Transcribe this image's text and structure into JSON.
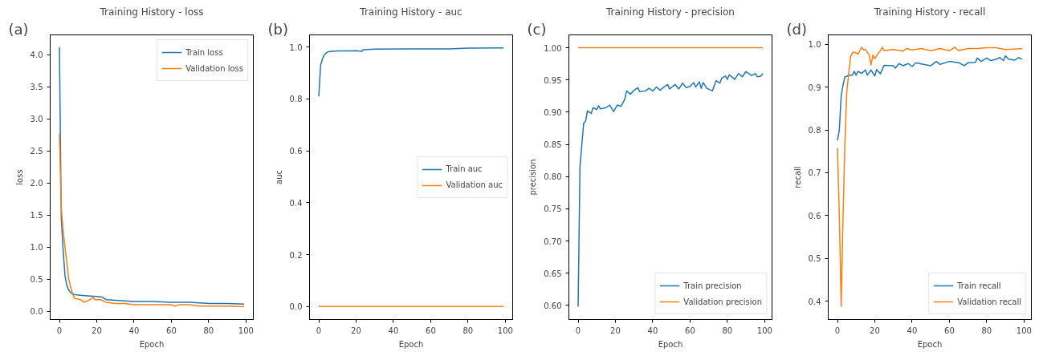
{
  "chart_data": [
    {
      "type": "line",
      "title": "Training History - loss",
      "xlabel": "Epoch",
      "ylabel": "loss",
      "annotations": [
        "(a)"
      ],
      "legend": "top right",
      "grid": false,
      "xlim": [
        -4.95,
        103.95
      ],
      "xticks": [
        0,
        20,
        40,
        60,
        80,
        100
      ],
      "ylim": [
        -0.13,
        4.31
      ],
      "yticks": [
        {
          "value": 0,
          "label": "0.0"
        },
        0.5,
        {
          "value": 1,
          "label": "1.0"
        },
        1.5,
        {
          "value": 2,
          "label": "2.0"
        },
        2.5,
        {
          "value": 3,
          "label": "3.0"
        },
        3.5,
        {
          "value": 4,
          "label": "4.0"
        }
      ],
      "series": [
        {
          "name": "Train loss",
          "color": "#1f77b4",
          "x": [
            0,
            1,
            2,
            3,
            4,
            5,
            6,
            7,
            8,
            10,
            15,
            20,
            23,
            25,
            30,
            40,
            50,
            60,
            70,
            75,
            80,
            90,
            99
          ],
          "values": [
            4.12,
            1.45,
            0.95,
            0.55,
            0.4,
            0.33,
            0.29,
            0.27,
            0.26,
            0.25,
            0.24,
            0.23,
            0.22,
            0.18,
            0.17,
            0.15,
            0.15,
            0.14,
            0.14,
            0.13,
            0.12,
            0.12,
            0.11
          ]
        },
        {
          "name": "Validation loss",
          "color": "#ff7f0e",
          "x": [
            0,
            1,
            2,
            3,
            4,
            5,
            6,
            7,
            8,
            10,
            12,
            13,
            15,
            17,
            18,
            19,
            22,
            25,
            30,
            35,
            40,
            50,
            60,
            62,
            64,
            70,
            75,
            80,
            90,
            99
          ],
          "values": [
            2.77,
            1.6,
            1.25,
            1.0,
            0.75,
            0.5,
            0.38,
            0.28,
            0.2,
            0.19,
            0.17,
            0.14,
            0.16,
            0.19,
            0.22,
            0.18,
            0.18,
            0.14,
            0.12,
            0.12,
            0.1,
            0.1,
            0.1,
            0.08,
            0.1,
            0.1,
            0.08,
            0.08,
            0.08,
            0.07
          ]
        }
      ]
    },
    {
      "type": "line",
      "title": "Training History - auc",
      "xlabel": "Epoch",
      "ylabel": "auc",
      "annotations": [
        "(b)"
      ],
      "legend": "right",
      "grid": false,
      "xlim": [
        -4.95,
        103.95
      ],
      "xticks": [
        0,
        20,
        40,
        60,
        80,
        100
      ],
      "ylim": [
        -0.05,
        1.047
      ],
      "yticks": [
        {
          "value": 0,
          "label": "0.0"
        },
        0.2,
        0.4,
        0.6,
        0.8,
        {
          "value": 1,
          "label": "1.0"
        }
      ],
      "series": [
        {
          "name": "Train auc",
          "color": "#1f77b4",
          "x": [
            0,
            1,
            2,
            3,
            4,
            5,
            10,
            15,
            20,
            23,
            24,
            30,
            50,
            70,
            80,
            99
          ],
          "values": [
            0.81,
            0.93,
            0.955,
            0.97,
            0.978,
            0.982,
            0.985,
            0.985,
            0.986,
            0.984,
            0.99,
            0.992,
            0.993,
            0.993,
            0.996,
            0.997
          ]
        },
        {
          "name": "Validation auc",
          "color": "#ff7f0e",
          "x": [
            0,
            99
          ],
          "values": [
            0,
            0
          ]
        }
      ]
    },
    {
      "type": "line",
      "title": "Training History - precision",
      "xlabel": "Epoch",
      "ylabel": "precision",
      "annotations": [
        "(c)"
      ],
      "legend": "bottom right",
      "grid": false,
      "xlim": [
        -4.95,
        103.95
      ],
      "xticks": [
        0,
        20,
        40,
        60,
        80,
        100
      ],
      "ylim": [
        0.578,
        1.02
      ],
      "yticks": [
        {
          "value": 0.6,
          "label": "0.60"
        },
        0.65,
        {
          "value": 0.7,
          "label": "0.70"
        },
        0.75,
        {
          "value": 0.8,
          "label": "0.80"
        },
        0.85,
        {
          "value": 0.9,
          "label": "0.90"
        },
        0.95,
        {
          "value": 1,
          "label": "1.00"
        }
      ],
      "series": [
        {
          "name": "Train precision",
          "color": "#1f77b4",
          "x": [
            0,
            1,
            2,
            3,
            4,
            5,
            7,
            8,
            10,
            11,
            12,
            15,
            17,
            19,
            21,
            23,
            25,
            26,
            28,
            30,
            32,
            33,
            36,
            38,
            40,
            42,
            44,
            46,
            48,
            49,
            52,
            54,
            56,
            58,
            60,
            62,
            63,
            65,
            66,
            67,
            69,
            72,
            74,
            76,
            77,
            79,
            80,
            81,
            84,
            86,
            88,
            90,
            93,
            95,
            96,
            98,
            99
          ],
          "values": [
            0.598,
            0.815,
            0.85,
            0.883,
            0.886,
            0.902,
            0.898,
            0.907,
            0.904,
            0.91,
            0.905,
            0.907,
            0.911,
            0.901,
            0.911,
            0.909,
            0.92,
            0.933,
            0.928,
            0.934,
            0.938,
            0.932,
            0.933,
            0.937,
            0.933,
            0.939,
            0.934,
            0.939,
            0.943,
            0.936,
            0.943,
            0.936,
            0.945,
            0.938,
            0.94,
            0.946,
            0.939,
            0.947,
            0.937,
            0.946,
            0.937,
            0.933,
            0.949,
            0.945,
            0.953,
            0.956,
            0.951,
            0.958,
            0.951,
            0.96,
            0.955,
            0.963,
            0.957,
            0.96,
            0.955,
            0.956,
            0.96
          ]
        },
        {
          "name": "Validation precision",
          "color": "#ff7f0e",
          "x": [
            0,
            99
          ],
          "values": [
            1.0,
            1.0
          ]
        }
      ]
    },
    {
      "type": "line",
      "title": "Training History - recall",
      "xlabel": "Epoch",
      "ylabel": "recall",
      "annotations": [
        "(d)"
      ],
      "legend": "bottom right",
      "grid": false,
      "xlim": [
        -4.95,
        103.95
      ],
      "xticks": [
        0,
        20,
        40,
        60,
        80,
        100
      ],
      "ylim": [
        0.357,
        1.022
      ],
      "yticks": [
        0.4,
        0.5,
        0.6,
        0.7,
        0.8,
        0.9,
        {
          "value": 1,
          "label": "1.0"
        }
      ],
      "series": [
        {
          "name": "Train recall",
          "color": "#1f77b4",
          "x": [
            0,
            1,
            2,
            3,
            4,
            5,
            6,
            8,
            9,
            10,
            11,
            13,
            15,
            16,
            18,
            20,
            21,
            23,
            25,
            30,
            31,
            33,
            35,
            38,
            40,
            42,
            45,
            50,
            53,
            55,
            60,
            65,
            68,
            70,
            74,
            75,
            77,
            80,
            82,
            85,
            87,
            89,
            90,
            92,
            95,
            97,
            99
          ],
          "values": [
            0.776,
            0.8,
            0.88,
            0.905,
            0.924,
            0.925,
            0.928,
            0.928,
            0.937,
            0.928,
            0.937,
            0.932,
            0.94,
            0.928,
            0.94,
            0.926,
            0.941,
            0.931,
            0.951,
            0.95,
            0.944,
            0.955,
            0.95,
            0.955,
            0.948,
            0.957,
            0.954,
            0.95,
            0.96,
            0.953,
            0.96,
            0.957,
            0.95,
            0.957,
            0.958,
            0.968,
            0.96,
            0.968,
            0.962,
            0.965,
            0.969,
            0.962,
            0.973,
            0.965,
            0.963,
            0.969,
            0.965
          ]
        },
        {
          "name": "Validation recall",
          "color": "#ff7f0e",
          "x": [
            0,
            1,
            2,
            3,
            4,
            5,
            6,
            7,
            8,
            9,
            11,
            12,
            13,
            14,
            15,
            17,
            18,
            19,
            20,
            22,
            23,
            24,
            25,
            30,
            35,
            37,
            40,
            45,
            50,
            55,
            60,
            63,
            65,
            70,
            75,
            80,
            85,
            90,
            99
          ],
          "values": [
            0.758,
            0.6,
            0.388,
            0.6,
            0.77,
            0.89,
            0.93,
            0.97,
            0.98,
            0.982,
            0.977,
            0.985,
            0.993,
            0.987,
            0.988,
            0.975,
            0.952,
            0.975,
            0.966,
            0.98,
            0.985,
            0.993,
            0.985,
            0.988,
            0.984,
            0.99,
            0.987,
            0.99,
            0.985,
            0.99,
            0.985,
            0.993,
            0.985,
            0.99,
            0.99,
            0.992,
            0.992,
            0.988,
            0.99
          ]
        }
      ]
    }
  ]
}
